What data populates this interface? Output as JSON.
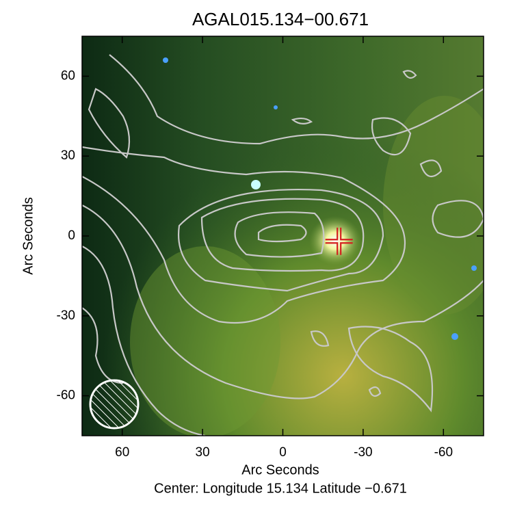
{
  "chart_data": {
    "type": "image",
    "title": "AGAL015.134−00.671",
    "x_label": "Arc Seconds",
    "y_label": "Arc Seconds",
    "footer": "Center:  Longitude 15.134 Latitude −0.671",
    "xlim": [
      75,
      -75
    ],
    "ylim": [
      -75,
      75
    ],
    "xticks": [
      60,
      30,
      0,
      -30,
      -60
    ],
    "yticks": [
      -60,
      -30,
      0,
      30,
      60
    ],
    "marker": {
      "x": -21,
      "y": -2,
      "color": "#d42020"
    },
    "contour_color": "#c8c8c8",
    "grid": false
  }
}
